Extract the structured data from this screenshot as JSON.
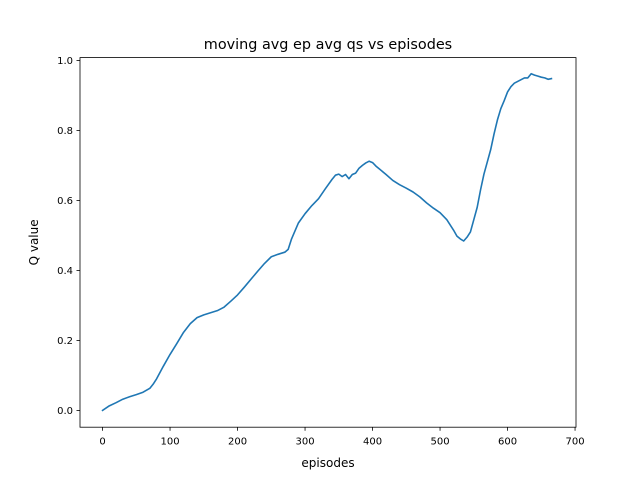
{
  "chart_data": {
    "type": "line",
    "title": "moving avg ep avg qs vs episodes",
    "xlabel": "episodes",
    "ylabel": "Q value",
    "xlim": [
      -33.4,
      701.4
    ],
    "ylim": [
      -0.048,
      1.008
    ],
    "xticks": [
      0,
      100,
      200,
      300,
      400,
      500,
      600,
      700
    ],
    "yticks": [
      0.0,
      0.2,
      0.4,
      0.6,
      0.8,
      1.0
    ],
    "xtick_labels": [
      "0",
      "100",
      "200",
      "300",
      "400",
      "500",
      "600",
      "700"
    ],
    "ytick_labels": [
      "0.0",
      "0.2",
      "0.4",
      "0.6",
      "0.8",
      "1.0"
    ],
    "grid": false,
    "legend": "none",
    "series_color": "#1f77b4",
    "series": [
      {
        "x": [
          0,
          10,
          20,
          30,
          40,
          50,
          60,
          70,
          75,
          80,
          90,
          100,
          110,
          120,
          130,
          140,
          150,
          160,
          170,
          180,
          190,
          200,
          210,
          220,
          230,
          240,
          250,
          260,
          270,
          275,
          280,
          290,
          300,
          310,
          320,
          330,
          340,
          345,
          350,
          355,
          360,
          365,
          370,
          375,
          380,
          385,
          390,
          395,
          400,
          405,
          410,
          420,
          430,
          440,
          450,
          460,
          470,
          480,
          490,
          500,
          510,
          520,
          525,
          530,
          535,
          540,
          545,
          550,
          555,
          560,
          565,
          570,
          575,
          580,
          585,
          590,
          595,
          600,
          605,
          610,
          615,
          620,
          625,
          630,
          635,
          640,
          645,
          650,
          655,
          660,
          665
        ],
        "y": [
          0.0,
          0.013,
          0.022,
          0.032,
          0.039,
          0.045,
          0.052,
          0.063,
          0.075,
          0.09,
          0.126,
          0.16,
          0.191,
          0.223,
          0.248,
          0.265,
          0.273,
          0.279,
          0.285,
          0.295,
          0.312,
          0.33,
          0.352,
          0.375,
          0.398,
          0.42,
          0.439,
          0.446,
          0.452,
          0.46,
          0.49,
          0.535,
          0.562,
          0.585,
          0.605,
          0.633,
          0.66,
          0.672,
          0.675,
          0.668,
          0.674,
          0.662,
          0.674,
          0.678,
          0.692,
          0.7,
          0.707,
          0.712,
          0.708,
          0.698,
          0.69,
          0.674,
          0.657,
          0.645,
          0.635,
          0.624,
          0.61,
          0.593,
          0.578,
          0.565,
          0.545,
          0.515,
          0.498,
          0.49,
          0.484,
          0.495,
          0.51,
          0.545,
          0.58,
          0.63,
          0.675,
          0.71,
          0.745,
          0.79,
          0.83,
          0.862,
          0.885,
          0.91,
          0.925,
          0.935,
          0.94,
          0.945,
          0.95,
          0.95,
          0.962,
          0.958,
          0.955,
          0.952,
          0.95,
          0.946,
          0.948
        ]
      }
    ]
  }
}
